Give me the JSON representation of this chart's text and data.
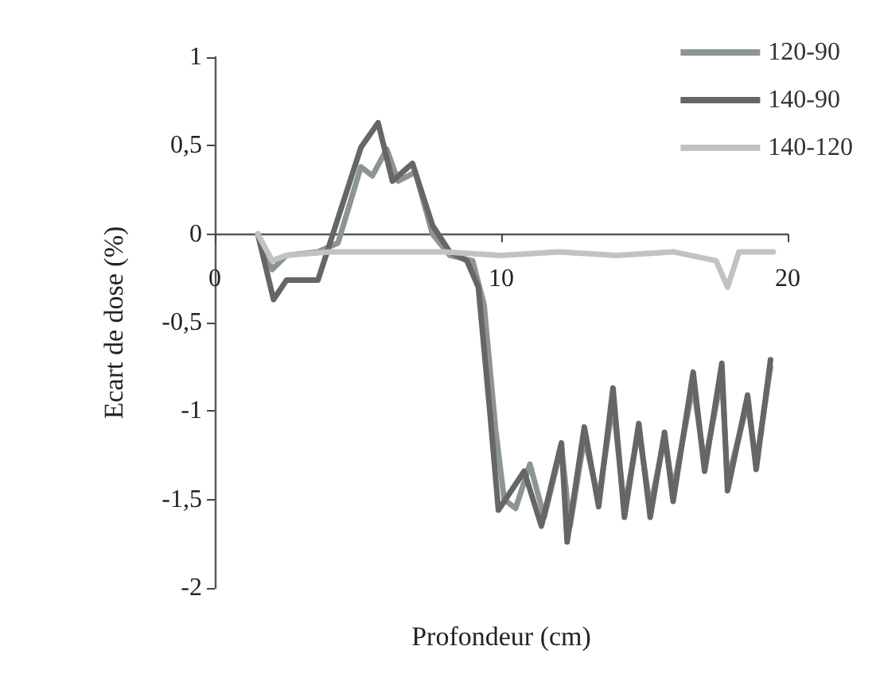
{
  "chart_data": {
    "type": "line",
    "xlabel": "Profondeur (cm)",
    "ylabel": "Ecart de dose (%)",
    "xlim": [
      0,
      20
    ],
    "xticks": [
      0,
      10,
      20
    ],
    "ylim": [
      -2,
      1
    ],
    "yticks": [
      {
        "value": -2,
        "label": "-2"
      },
      {
        "value": -1.5,
        "label": "-1,5"
      },
      {
        "value": -1,
        "label": "-1"
      },
      {
        "value": -0.5,
        "label": "-0,5"
      },
      {
        "value": 0,
        "label": "0"
      },
      {
        "value": 0.5,
        "label": "0,5"
      },
      {
        "value": 1,
        "label": "1"
      }
    ],
    "grid": false,
    "legend": "top right",
    "marker": "none",
    "line_style": "solid",
    "series": [
      {
        "name": "120-90",
        "color": "#8c9494",
        "x": [
          1.5,
          2.0,
          2.5,
          3.6,
          4.3,
          5.1,
          5.5,
          6.0,
          6.4,
          7.0,
          7.6,
          8.2,
          9.0,
          9.4,
          9.8,
          10.1,
          10.5,
          11.0,
          11.5,
          12.1,
          12.4,
          12.9,
          13.4,
          13.9,
          14.3,
          14.8,
          15.2,
          15.7,
          16.0,
          16.7,
          17.1,
          17.7,
          17.9,
          18.6,
          18.9,
          19.4
        ],
        "values": [
          0,
          -0.2,
          -0.12,
          -0.1,
          -0.05,
          0.38,
          0.33,
          0.48,
          0.3,
          0.35,
          0,
          -0.12,
          -0.15,
          -0.4,
          -1.1,
          -1.5,
          -1.55,
          -1.3,
          -1.6,
          -1.2,
          -1.65,
          -1.15,
          -1.5,
          -0.95,
          -1.55,
          -1.1,
          -1.55,
          -1.15,
          -1.45,
          -0.85,
          -1.3,
          -0.8,
          -1.4,
          -0.95,
          -1.3,
          -0.75
        ]
      },
      {
        "name": "140-90",
        "color": "#666666",
        "x": [
          1.5,
          2.05,
          2.5,
          3.6,
          4.2,
          5.1,
          5.7,
          6.2,
          6.9,
          7.6,
          8.2,
          8.8,
          9.2,
          9.6,
          9.9,
          10.8,
          11.4,
          12.1,
          12.3,
          12.9,
          13.4,
          13.9,
          14.3,
          14.8,
          15.2,
          15.7,
          16.0,
          16.7,
          17.1,
          17.7,
          17.9,
          18.6,
          18.9,
          19.4
        ],
        "values": [
          0,
          -0.37,
          -0.26,
          -0.26,
          0.04,
          0.49,
          0.63,
          0.3,
          0.4,
          0.05,
          -0.1,
          -0.15,
          -0.3,
          -1.0,
          -1.56,
          -1.34,
          -1.65,
          -1.18,
          -1.74,
          -1.09,
          -1.54,
          -0.87,
          -1.6,
          -1.07,
          -1.6,
          -1.12,
          -1.51,
          -0.78,
          -1.34,
          -0.73,
          -1.45,
          -0.91,
          -1.33,
          -0.71
        ]
      },
      {
        "name": "140-120",
        "color": "#c2c2c2",
        "x": [
          1.5,
          2.0,
          2.5,
          4.0,
          6.0,
          8.0,
          10.0,
          12.0,
          14.0,
          16.0,
          17.5,
          17.9,
          18.3,
          19.5
        ],
        "values": [
          0,
          -0.15,
          -0.12,
          -0.1,
          -0.1,
          -0.1,
          -0.12,
          -0.1,
          -0.12,
          -0.1,
          -0.15,
          -0.3,
          -0.1,
          -0.1
        ]
      }
    ]
  }
}
